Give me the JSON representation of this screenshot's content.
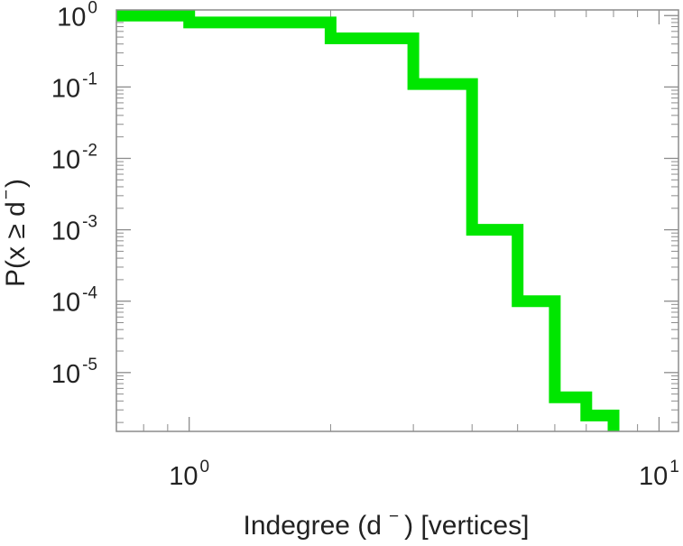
{
  "chart_data": {
    "type": "line",
    "step": true,
    "xscale": "log",
    "yscale": "log",
    "xlim": [
      0.7,
      11
    ],
    "ylim": [
      1.5e-06,
      1.2
    ],
    "xlabel": {
      "pre": "Indegree (d",
      "sup": "−",
      "post": ") [vertices]"
    },
    "ylabel": {
      "pre": "P(x ≥ d",
      "sup": "−",
      "post": ")"
    },
    "x_ticks": [
      {
        "value": 1,
        "base": "10",
        "exp": "0"
      },
      {
        "value": 10,
        "base": "10",
        "exp": "1"
      }
    ],
    "y_ticks": [
      {
        "value": 1,
        "base": "10",
        "exp": "0"
      },
      {
        "value": 0.1,
        "base": "10",
        "exp": "-1"
      },
      {
        "value": 0.01,
        "base": "10",
        "exp": "-2"
      },
      {
        "value": 0.001,
        "base": "10",
        "exp": "-3"
      },
      {
        "value": 0.0001,
        "base": "10",
        "exp": "-4"
      },
      {
        "value": 1e-05,
        "base": "10",
        "exp": "-5"
      }
    ],
    "series": [
      {
        "color": "#00e600",
        "x": [
          0.7,
          1,
          2,
          3,
          4,
          5,
          6,
          7,
          8
        ],
        "y": [
          1.0,
          0.8,
          0.48,
          0.11,
          0.001,
          0.0001,
          4.5e-06,
          2.5e-06,
          1.5e-06
        ]
      }
    ]
  }
}
